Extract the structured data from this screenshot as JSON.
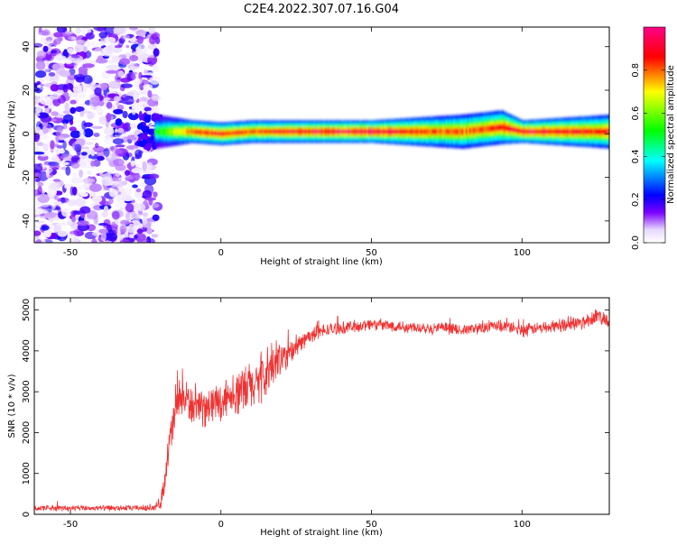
{
  "title": "C2E4.2022.307.07.16.G04",
  "chart_data": [
    {
      "type": "heatmap",
      "title": "C2E4.2022.307.07.16.G04",
      "xlabel": "Height of straight line (km)",
      "ylabel": "Frequency (Hz)",
      "xlim": [
        -62,
        129
      ],
      "ylim": [
        -50,
        49
      ],
      "x_ticks": [
        -50,
        0,
        50,
        100
      ],
      "y_ticks": [
        -40,
        -20,
        0,
        20,
        40
      ],
      "colorbar": {
        "label": "Normalized spectral amplitude",
        "range": [
          0,
          1
        ],
        "ticks": [
          0.0,
          0.2,
          0.4,
          0.6,
          0.8
        ],
        "tick_labels": [
          "0.0",
          "0.2",
          "0.4",
          "0.6",
          "0.8"
        ],
        "colormap": [
          "#ffffff",
          "#7a00ff",
          "#0000ff",
          "#00ffff",
          "#00ff00",
          "#ffff00",
          "#ff0000",
          "#ff0088"
        ]
      },
      "noise_region_x": [
        -62,
        -22
      ],
      "signal_band": [
        {
          "x": -22,
          "freq": 1,
          "amp": 0.5,
          "width": 3
        },
        {
          "x": -10,
          "freq": 1,
          "amp": 0.85,
          "width": 2
        },
        {
          "x": 0,
          "freq": 0,
          "amp": 0.9,
          "width": 2
        },
        {
          "x": 10,
          "freq": 1,
          "amp": 0.85,
          "width": 2
        },
        {
          "x": 20,
          "freq": 1,
          "amp": 0.9,
          "width": 2
        },
        {
          "x": 50,
          "freq": 1,
          "amp": 0.95,
          "width": 2
        },
        {
          "x": 80,
          "freq": 1,
          "amp": 0.8,
          "width": 3
        },
        {
          "x": 93,
          "freq": 3,
          "amp": 0.9,
          "width": 3
        },
        {
          "x": 100,
          "freq": 1,
          "amp": 0.95,
          "width": 2
        },
        {
          "x": 129,
          "freq": 1,
          "amp": 0.85,
          "width": 3
        }
      ],
      "grid": false
    },
    {
      "type": "line",
      "xlabel": "Height of straight line (km)",
      "ylabel": "SNR (10 * v/v)",
      "xlim": [
        -62,
        129
      ],
      "ylim": [
        0,
        5300
      ],
      "x_ticks": [
        -50,
        0,
        50,
        100
      ],
      "y_ticks": [
        0,
        1000,
        2000,
        3000,
        4000,
        5000
      ],
      "series": [
        {
          "color": "#ee3333",
          "x": [
            -62,
            -50,
            -40,
            -30,
            -22,
            -20,
            -19,
            -18,
            -17,
            -16,
            -15,
            -14,
            -12,
            -10,
            -8,
            -6,
            -4,
            -2,
            0,
            2,
            4,
            6,
            8,
            10,
            12,
            14,
            16,
            18,
            20,
            22,
            25,
            28,
            32,
            36,
            40,
            45,
            50,
            55,
            60,
            65,
            70,
            75,
            80,
            85,
            90,
            95,
            100,
            105,
            110,
            115,
            120,
            125,
            129
          ],
          "y": [
            150,
            150,
            150,
            150,
            160,
            300,
            700,
            1300,
            1700,
            2200,
            2600,
            2800,
            2800,
            2700,
            2600,
            2550,
            2650,
            2750,
            2750,
            2900,
            3000,
            2900,
            3100,
            3100,
            3250,
            3300,
            3500,
            3700,
            3800,
            3900,
            4100,
            4300,
            4450,
            4520,
            4560,
            4600,
            4650,
            4620,
            4600,
            4580,
            4560,
            4550,
            4500,
            4550,
            4600,
            4600,
            4500,
            4550,
            4600,
            4650,
            4700,
            4850,
            4750
          ],
          "noise_amplitude": [
            60,
            60,
            60,
            60,
            60,
            150,
            250,
            350,
            450,
            500,
            550,
            500,
            450,
            400,
            350,
            350,
            350,
            380,
            400,
            420,
            450,
            480,
            500,
            520,
            550,
            600,
            600,
            500,
            400,
            300,
            200,
            160,
            150,
            140,
            130,
            130,
            130,
            130,
            130,
            120,
            120,
            120,
            120,
            120,
            120,
            120,
            130,
            130,
            130,
            140,
            140,
            180,
            160
          ]
        }
      ],
      "grid": false
    }
  ]
}
